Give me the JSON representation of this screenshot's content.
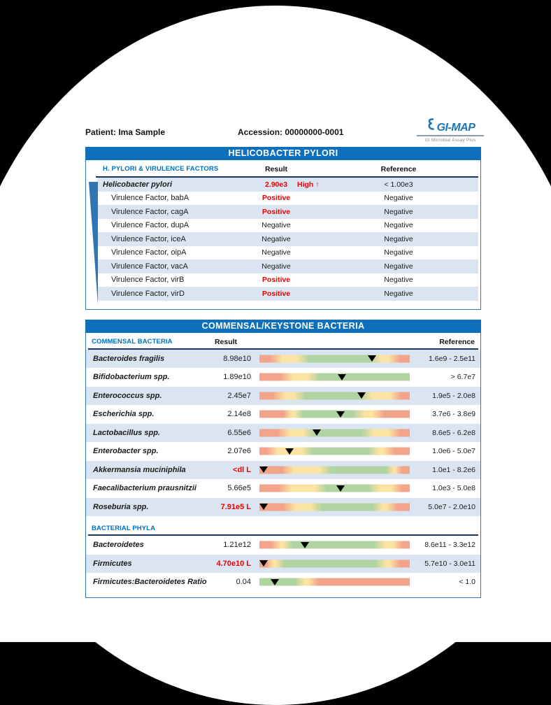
{
  "header": {
    "patient": "Patient: Ima Sample",
    "accession": "Accession: 00000000-0001",
    "logo": {
      "name": "GI-MAP",
      "tagline": "GI Microbial Assay Plus"
    }
  },
  "hpylori_section": {
    "banner": "HELICOBACTER PYLORI",
    "columns": {
      "name": "H. PYLORI & VIRULENCE FACTORS",
      "result": "Result",
      "reference": "Reference"
    },
    "rows": [
      {
        "name": "Helicobacter pylori",
        "result": "2.90e3",
        "flag": "High ↑",
        "reference": "< 1.00e3",
        "abnormal": true,
        "emphasis": true
      },
      {
        "name": "Virulence Factor, babA",
        "result": "Positive",
        "reference": "Negative",
        "abnormal": true
      },
      {
        "name": "Virulence Factor, cagA",
        "result": "Positive",
        "reference": "Negative",
        "abnormal": true
      },
      {
        "name": "Virulence Factor, dupA",
        "result": "Negative",
        "reference": "Negative",
        "abnormal": false
      },
      {
        "name": "Virulence Factor, iceA",
        "result": "Negative",
        "reference": "Negative",
        "abnormal": false
      },
      {
        "name": "Virulence Factor, oipA",
        "result": "Negative",
        "reference": "Negative",
        "abnormal": false
      },
      {
        "name": "Virulence Factor, vacA",
        "result": "Negative",
        "reference": "Negative",
        "abnormal": false
      },
      {
        "name": "Virulence Factor, virB",
        "result": "Positive",
        "reference": "Negative",
        "abnormal": true
      },
      {
        "name": "Virulence Factor, virD",
        "result": "Positive",
        "reference": "Negative",
        "abnormal": true
      }
    ]
  },
  "commensal_section": {
    "banner": "COMMENSAL/KEYSTONE BACTERIA",
    "columns": {
      "name": "COMMENSAL BACTERIA",
      "result": "Result",
      "reference": "Reference"
    },
    "rows": [
      {
        "name": "Bacteroides fragilis",
        "result": "8.98e10",
        "reference": "1.6e9 - 2.5e11",
        "abnormal": false,
        "marker": 75,
        "segments": [
          [
            "s",
            0,
            11
          ],
          [
            "y",
            11,
            29
          ],
          [
            "g",
            29,
            77
          ],
          [
            "y",
            77,
            90
          ],
          [
            "s",
            90,
            100
          ]
        ]
      },
      {
        "name": "Bifidobacterium spp.",
        "result": "1.89e10",
        "reference": "> 6.7e7",
        "abnormal": false,
        "marker": 55,
        "segments": [
          [
            "s",
            0,
            18
          ],
          [
            "y",
            18,
            36
          ],
          [
            "g",
            36,
            100
          ]
        ]
      },
      {
        "name": "Enterococcus spp.",
        "result": "2.45e7",
        "reference": "1.9e5 - 2.0e8",
        "abnormal": false,
        "marker": 68,
        "segments": [
          [
            "s",
            0,
            13
          ],
          [
            "y",
            13,
            27
          ],
          [
            "g",
            27,
            71
          ],
          [
            "y",
            71,
            91
          ],
          [
            "s",
            91,
            100
          ]
        ]
      },
      {
        "name": "Escherichia spp.",
        "result": "2.14e8",
        "reference": "3.7e6 - 3.8e9",
        "abnormal": false,
        "marker": 54,
        "segments": [
          [
            "s",
            0,
            20
          ],
          [
            "y",
            20,
            25
          ],
          [
            "g",
            25,
            66
          ],
          [
            "y",
            66,
            79
          ],
          [
            "s",
            79,
            100
          ]
        ]
      },
      {
        "name": "Lactobacillus spp.",
        "result": "6.55e6",
        "reference": "8.6e5 - 6.2e8",
        "abnormal": false,
        "marker": 38,
        "segments": [
          [
            "s",
            0,
            16
          ],
          [
            "y",
            16,
            33
          ],
          [
            "g",
            33,
            72
          ],
          [
            "y",
            72,
            90
          ],
          [
            "s",
            90,
            100
          ]
        ]
      },
      {
        "name": "Enterobacter spp.",
        "result": "2.07e6",
        "reference": "1.0e6 - 5.0e7",
        "abnormal": false,
        "marker": 20,
        "segments": [
          [
            "s",
            0,
            8
          ],
          [
            "y",
            8,
            32
          ],
          [
            "g",
            32,
            76
          ],
          [
            "y",
            76,
            86
          ],
          [
            "s",
            86,
            100
          ]
        ]
      },
      {
        "name": "Akkermansia muciniphila",
        "result": "<dl L",
        "reference": "1.0e1 - 8.2e6",
        "abnormal": true,
        "marker": 3,
        "segments": [
          [
            "s",
            0,
            19
          ],
          [
            "y",
            19,
            44
          ],
          [
            "g",
            44,
            88
          ],
          [
            "y",
            88,
            92
          ],
          [
            "s",
            92,
            100
          ]
        ]
      },
      {
        "name": "Faecalibacterium prausnitzii",
        "result": "5.66e5",
        "reference": "1.0e3 - 5.0e8",
        "abnormal": false,
        "marker": 54,
        "segments": [
          [
            "s",
            0,
            17
          ],
          [
            "y",
            17,
            41
          ],
          [
            "g",
            41,
            76
          ],
          [
            "y",
            76,
            92
          ],
          [
            "s",
            92,
            100
          ]
        ]
      },
      {
        "name": "Roseburia spp.",
        "result": "7.91e5 L",
        "reference": "5.0e7 - 2.0e10",
        "abnormal": true,
        "marker": 3,
        "segments": [
          [
            "s",
            0,
            20
          ],
          [
            "y",
            20,
            38
          ],
          [
            "g",
            38,
            79
          ],
          [
            "y",
            79,
            88
          ],
          [
            "s",
            88,
            100
          ]
        ]
      }
    ],
    "phyla_header": "BACTERIAL PHYLA",
    "phyla_rows": [
      {
        "name": "Bacteroidetes",
        "result": "1.21e12",
        "reference": "8.6e11 - 3.3e12",
        "abnormal": false,
        "marker": 30,
        "segments": [
          [
            "s",
            0,
            12
          ],
          [
            "y",
            12,
            18
          ],
          [
            "g",
            18,
            80
          ],
          [
            "y",
            80,
            93
          ],
          [
            "s",
            93,
            100
          ]
        ]
      },
      {
        "name": "Firmicutes",
        "result": "4.70e10 L",
        "reference": "5.7e10 - 3.0e11",
        "abnormal": true,
        "marker": 3,
        "segments": [
          [
            "s",
            0,
            7
          ],
          [
            "y",
            7,
            13
          ],
          [
            "g",
            13,
            81
          ],
          [
            "y",
            81,
            90
          ],
          [
            "s",
            90,
            100
          ]
        ]
      },
      {
        "name": "Firmicutes:Bacteroidetes Ratio",
        "result": "0.04",
        "reference": "< 1.0",
        "abnormal": false,
        "marker": 10,
        "segments": [
          [
            "g",
            0,
            28
          ],
          [
            "y",
            28,
            35
          ],
          [
            "s",
            35,
            100
          ]
        ]
      }
    ]
  },
  "colors": {
    "banner_blue": "#0e70bd",
    "row_alt_blue": "#dbe5f1",
    "navy_rule": "#17375e",
    "column_header_blue": "#0070c0",
    "abnormal_red": "#ee0000",
    "border_blue": "#2e75b6",
    "bar": {
      "s": "#f2a48b",
      "y": "#fbe3a3",
      "g": "#afd3a1"
    }
  }
}
